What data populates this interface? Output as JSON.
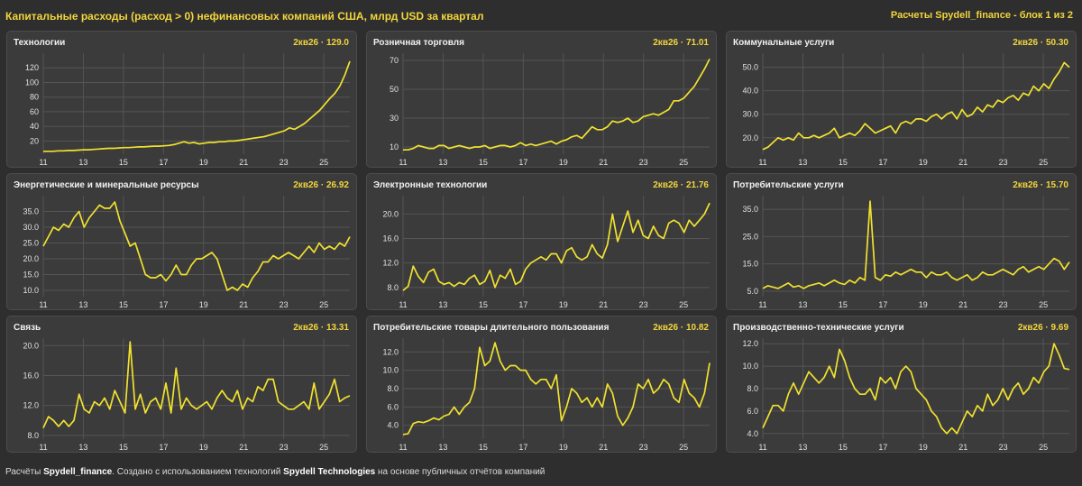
{
  "header": {
    "title": "Капитальные расходы (расход > 0) нефинансовых компаний США, млрд USD за квартал",
    "source": "Расчеты Spydell_finance - блок 1 из 2"
  },
  "footer": {
    "prefix": "Расчёты ",
    "author": "Spydell_finance",
    "middle": ". Создано с использованием технологий ",
    "tech": "Spydell Technologies",
    "suffix": " на основе публичных отчётов компаний"
  },
  "colors": {
    "line": "#f0e130",
    "accent": "#f2d53c",
    "panel": "#3b3b3b",
    "background": "#2e2e2e"
  },
  "chart_data": [
    {
      "type": "line",
      "title": "Технологии",
      "last_label": "2кв26 · 129.0",
      "xticks": [
        "11",
        "13",
        "15",
        "17",
        "19",
        "21",
        "23",
        "25"
      ],
      "yticks": [
        20,
        40,
        60,
        80,
        100,
        120
      ],
      "ylim": [
        2,
        140
      ],
      "series": [
        {
          "values": [
            6,
            6,
            6,
            6.5,
            6.5,
            7,
            7,
            7.5,
            8,
            8,
            8.5,
            9,
            9.5,
            10,
            10,
            10.5,
            11,
            11,
            11.5,
            12,
            12,
            12.5,
            13,
            13,
            13.5,
            14,
            15,
            17,
            19,
            17,
            18,
            16,
            17,
            18,
            18,
            19,
            19,
            20,
            20,
            21,
            22,
            23,
            24,
            25,
            26,
            28,
            30,
            32,
            34,
            38,
            36,
            40,
            44,
            50,
            56,
            62,
            70,
            78,
            85,
            95,
            110,
            129
          ]
        }
      ]
    },
    {
      "type": "line",
      "title": "Розничная торговля",
      "last_label": "2кв26 · 71.01",
      "xticks": [
        "11",
        "13",
        "15",
        "17",
        "19",
        "21",
        "23",
        "25"
      ],
      "yticks": [
        10,
        30,
        50,
        70
      ],
      "ylim": [
        5,
        75
      ],
      "series": [
        {
          "values": [
            8,
            8,
            9,
            11,
            10,
            9,
            9,
            11,
            11,
            9,
            10,
            11,
            10,
            9,
            10,
            10,
            11,
            9,
            10,
            11,
            11,
            10,
            11,
            13,
            11,
            12,
            11,
            12,
            13,
            14,
            12,
            14,
            15,
            17,
            18,
            16,
            20,
            24,
            22,
            22,
            24,
            28,
            27,
            28,
            30,
            27,
            28,
            31,
            32,
            33,
            32,
            34,
            36,
            42,
            42,
            44,
            48,
            52,
            58,
            64,
            71
          ]
        }
      ]
    },
    {
      "type": "line",
      "title": "Коммунальные услуги",
      "last_label": "2кв26 · 50.30",
      "xticks": [
        "11",
        "13",
        "15",
        "17",
        "19",
        "21",
        "23",
        "25"
      ],
      "yticks": [
        20,
        30,
        40,
        50
      ],
      "ylim": [
        13,
        56
      ],
      "series": [
        {
          "values": [
            15,
            16,
            18,
            20,
            19,
            20,
            19,
            22,
            20,
            20,
            21,
            20,
            21,
            22,
            24,
            20,
            21,
            22,
            21,
            23,
            26,
            24,
            22,
            23,
            24,
            25,
            22,
            26,
            27,
            26,
            28,
            28,
            27,
            29,
            30,
            28,
            30,
            31,
            28,
            32,
            29,
            30,
            33,
            31,
            34,
            33,
            36,
            35,
            37,
            38,
            36,
            39,
            38,
            42,
            40,
            43,
            41,
            45,
            48,
            52,
            50
          ]
        }
      ]
    },
    {
      "type": "line",
      "title": "Энергетические и минеральные ресурсы",
      "last_label": "2кв26 · 26.92",
      "xticks": [
        "11",
        "13",
        "15",
        "17",
        "19",
        "21",
        "23",
        "25"
      ],
      "yticks": [
        10,
        15,
        20,
        25,
        30,
        35
      ],
      "ylim": [
        8,
        40
      ],
      "series": [
        {
          "values": [
            24,
            27,
            30,
            29,
            31,
            30,
            33,
            35,
            30,
            33,
            35,
            37,
            36,
            36,
            38,
            32,
            28,
            24,
            25,
            20,
            15,
            14,
            14,
            15,
            13,
            15,
            18,
            15,
            15,
            18,
            20,
            20,
            21,
            22,
            20,
            15,
            10,
            11,
            10,
            12,
            11,
            14,
            16,
            19,
            19,
            21,
            20,
            21,
            22,
            21,
            20,
            22,
            24,
            22,
            25,
            23,
            24,
            23,
            25,
            24,
            27
          ]
        }
      ]
    },
    {
      "type": "line",
      "title": "Электронные технологии",
      "last_label": "2кв26 · 21.76",
      "xticks": [
        "11",
        "13",
        "15",
        "17",
        "19",
        "21",
        "23",
        "25"
      ],
      "yticks": [
        8,
        12,
        16,
        20
      ],
      "ylim": [
        6.5,
        23
      ],
      "series": [
        {
          "values": [
            7.5,
            8.2,
            11.5,
            9.8,
            8.8,
            10.5,
            11,
            9,
            8.5,
            8.8,
            8.2,
            8.8,
            8.5,
            9.5,
            10,
            8.5,
            9,
            10.8,
            8,
            10,
            9.5,
            11,
            8.5,
            9,
            11,
            12,
            12.5,
            13,
            12.5,
            13.5,
            13.5,
            12,
            14,
            14.5,
            13,
            12.5,
            13,
            15,
            13.5,
            12.8,
            15,
            20,
            15.5,
            18,
            20.5,
            17,
            19,
            16.5,
            16,
            18,
            16.5,
            16,
            18.5,
            19,
            18.5,
            17,
            19,
            18,
            19,
            20,
            21.8
          ]
        }
      ]
    },
    {
      "type": "line",
      "title": "Потребительские услуги",
      "last_label": "2кв26 · 15.70",
      "xticks": [
        "11",
        "13",
        "15",
        "17",
        "19",
        "21",
        "23",
        "25"
      ],
      "yticks": [
        5,
        15,
        25,
        35
      ],
      "ylim": [
        3,
        40
      ],
      "series": [
        {
          "values": [
            6,
            7,
            6.5,
            6,
            7,
            8,
            6.5,
            7,
            6,
            7,
            7.5,
            8,
            7,
            8,
            9,
            8,
            7.5,
            9,
            8,
            10,
            9,
            38,
            10,
            9,
            11,
            10.5,
            12,
            11,
            12,
            13,
            12,
            12,
            10,
            12,
            11,
            11,
            12,
            10,
            9,
            10,
            11,
            9,
            10,
            12,
            11,
            11,
            12,
            13,
            12,
            11,
            13,
            14,
            12,
            13,
            14,
            13,
            15,
            17,
            16,
            13,
            15.7
          ]
        }
      ]
    },
    {
      "type": "line",
      "title": "Связь",
      "last_label": "2кв26 · 13.31",
      "xticks": [
        "11",
        "13",
        "15",
        "17",
        "19",
        "21",
        "23",
        "25"
      ],
      "yticks": [
        8,
        12,
        16,
        20
      ],
      "ylim": [
        7.5,
        21
      ],
      "series": [
        {
          "values": [
            9,
            10.5,
            10,
            9.2,
            10,
            9.2,
            10,
            13.5,
            11.5,
            11,
            12.5,
            12,
            13,
            11.5,
            14,
            12.5,
            11,
            20.5,
            11.5,
            13.5,
            11,
            12.5,
            13,
            11.5,
            15,
            11,
            17,
            11.5,
            13,
            12,
            11.5,
            12,
            12.5,
            11.5,
            13,
            14,
            13,
            12.5,
            14,
            11.5,
            13,
            12.5,
            14.5,
            14,
            15.5,
            15.5,
            12.5,
            12,
            11.5,
            11.5,
            12,
            12.5,
            11.5,
            15,
            11.5,
            12.5,
            13.5,
            15.5,
            12.5,
            13,
            13.3
          ]
        }
      ]
    },
    {
      "type": "line",
      "title": "Потребительские товары длительного пользования",
      "last_label": "2кв26 · 10.82",
      "xticks": [
        "11",
        "13",
        "15",
        "17",
        "19",
        "21",
        "23",
        "25"
      ],
      "yticks": [
        4,
        6,
        8,
        10,
        12
      ],
      "ylim": [
        2.5,
        13.5
      ],
      "series": [
        {
          "values": [
            3,
            3.1,
            4.2,
            4.4,
            4.3,
            4.5,
            4.8,
            4.6,
            5,
            5.2,
            6,
            5.2,
            6,
            6.5,
            8,
            12.5,
            10.5,
            11,
            13,
            11,
            10,
            10.5,
            10.5,
            10,
            10,
            9,
            8.5,
            9,
            9,
            8,
            9.5,
            4.5,
            6,
            8,
            7.5,
            6.5,
            7,
            6,
            7,
            6,
            8.5,
            7.5,
            5,
            4,
            4.8,
            6,
            8.5,
            8,
            9,
            7.5,
            8,
            9,
            8.5,
            7,
            6.5,
            9,
            7.5,
            7,
            6,
            7.5,
            10.8
          ]
        }
      ]
    },
    {
      "type": "line",
      "title": "Производственно-технические услуги",
      "last_label": "2кв26 · 9.69",
      "xticks": [
        "11",
        "13",
        "15",
        "17",
        "19",
        "21",
        "23",
        "25"
      ],
      "yticks": [
        4,
        6,
        8,
        10,
        12
      ],
      "ylim": [
        3.5,
        12.5
      ],
      "series": [
        {
          "values": [
            4.5,
            5.5,
            6.5,
            6.5,
            6,
            7.5,
            8.5,
            7.5,
            8.5,
            9.5,
            9,
            8.5,
            9,
            10,
            9,
            11.5,
            10.5,
            9,
            8,
            7.5,
            7.5,
            8,
            7,
            9,
            8.5,
            9,
            8,
            9.5,
            10,
            9.5,
            8,
            7.5,
            7,
            6,
            5.5,
            4.5,
            4,
            4.5,
            4,
            5,
            6,
            5.5,
            6.5,
            6,
            7.5,
            6.5,
            7,
            8,
            7,
            8,
            8.5,
            7.5,
            8,
            9,
            8.5,
            9.5,
            10,
            12,
            11,
            9.8,
            9.7
          ]
        }
      ]
    }
  ]
}
